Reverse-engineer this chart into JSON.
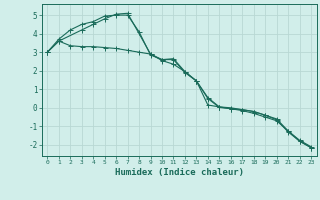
{
  "xlabel": "Humidex (Indice chaleur)",
  "bg_color": "#d1eeea",
  "grid_color": "#b8d8d4",
  "line_color": "#1a6b5a",
  "xlim": [
    -0.5,
    23.5
  ],
  "ylim": [
    -2.6,
    5.6
  ],
  "yticks": [
    -2,
    -1,
    0,
    1,
    2,
    3,
    4,
    5
  ],
  "xticks": [
    0,
    1,
    2,
    3,
    4,
    5,
    6,
    7,
    8,
    9,
    10,
    11,
    12,
    13,
    14,
    15,
    16,
    17,
    18,
    19,
    20,
    21,
    22,
    23
  ],
  "curve1_x": [
    0,
    1,
    2,
    3,
    4,
    5,
    6,
    7,
    8,
    9,
    10,
    11,
    12,
    13,
    14,
    15,
    16,
    17,
    18,
    19,
    20,
    21,
    22,
    23
  ],
  "curve1_y": [
    3.0,
    3.6,
    3.35,
    3.3,
    3.3,
    3.25,
    3.2,
    3.1,
    3.0,
    2.9,
    2.55,
    2.35,
    1.95,
    1.45,
    0.15,
    0.05,
    -0.05,
    -0.15,
    -0.3,
    -0.5,
    -0.7,
    -1.25,
    -1.75,
    -2.1
  ],
  "curve2_x": [
    0,
    1,
    2,
    3,
    4,
    5,
    6,
    7,
    8,
    9,
    10,
    11,
    12,
    13,
    14,
    15,
    16,
    17,
    18,
    19,
    20,
    21,
    22,
    23
  ],
  "curve2_y": [
    3.0,
    3.7,
    4.2,
    4.5,
    4.65,
    4.95,
    5.0,
    5.0,
    4.1,
    2.85,
    2.6,
    2.65,
    1.95,
    1.45,
    0.55,
    0.05,
    0.0,
    -0.1,
    -0.2,
    -0.4,
    -0.6,
    -1.25,
    -1.8,
    -2.15
  ],
  "curve3_x": [
    0,
    1,
    3,
    4,
    5,
    6,
    7,
    9,
    10,
    11,
    12,
    13,
    14,
    15,
    16,
    17,
    18,
    19,
    20,
    21,
    22,
    23
  ],
  "curve3_y": [
    3.0,
    3.6,
    4.2,
    4.5,
    4.8,
    5.05,
    5.1,
    2.9,
    2.6,
    2.6,
    1.9,
    1.45,
    0.5,
    0.02,
    -0.05,
    -0.1,
    -0.2,
    -0.4,
    -0.65,
    -1.3,
    -1.8,
    -2.15
  ]
}
